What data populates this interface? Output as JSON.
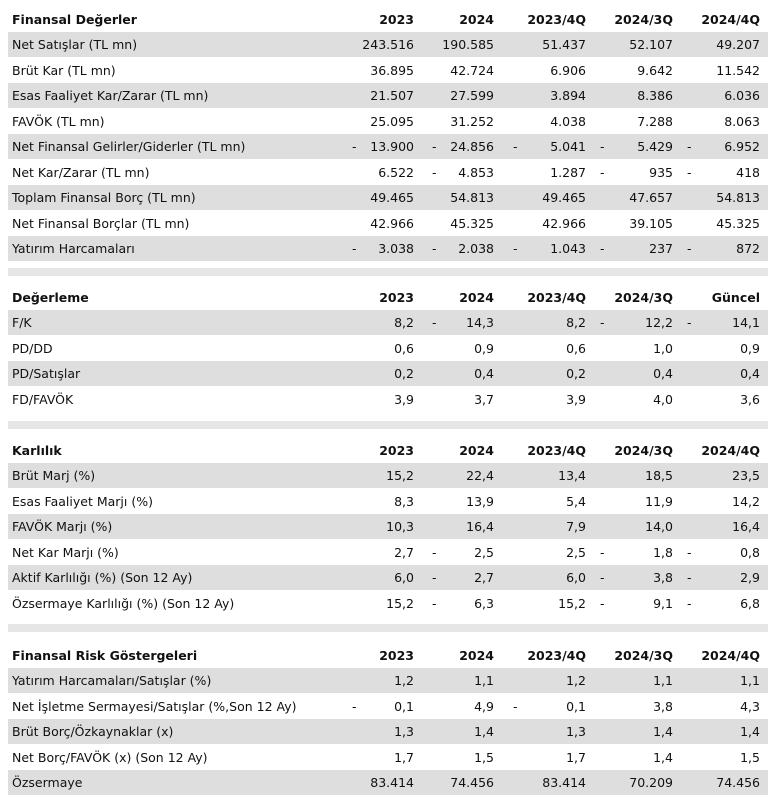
{
  "sections": [
    {
      "header": [
        "Finansal Değerler",
        "2023",
        "2024",
        "2023/4Q",
        "2024/3Q",
        "2024/4Q"
      ],
      "rows": [
        {
          "label": "Net Satışlar (TL mn)",
          "cells": [
            "243.516",
            "190.585",
            "51.437",
            "52.107",
            "49.207"
          ]
        },
        {
          "label": "Brüt Kar (TL mn)",
          "cells": [
            "36.895",
            "42.724",
            "6.906",
            "9.642",
            "11.542"
          ]
        },
        {
          "label": "Esas Faaliyet Kar/Zarar (TL mn)",
          "cells": [
            "21.507",
            "27.599",
            "3.894",
            "8.386",
            "6.036"
          ]
        },
        {
          "label": "FAVÖK (TL mn)",
          "cells": [
            "25.095",
            "31.252",
            "4.038",
            "7.288",
            "8.063"
          ]
        },
        {
          "label": "Net Finansal Gelirler/Giderler (TL mn)",
          "cells": [
            {
              "sign": "-",
              "num": "13.900"
            },
            {
              "sign": "-",
              "num": "24.856"
            },
            {
              "sign": "-",
              "num": "5.041"
            },
            {
              "sign": "-",
              "num": "5.429"
            },
            {
              "sign": "-",
              "num": "6.952"
            }
          ]
        },
        {
          "label": "Net Kar/Zarar (TL mn)",
          "cells": [
            "6.522",
            {
              "sign": "-",
              "num": "4.853"
            },
            "1.287",
            {
              "sign": "-",
              "num": "935"
            },
            {
              "sign": "-",
              "num": "418"
            }
          ]
        },
        {
          "label": "Toplam Finansal Borç (TL mn)",
          "cells": [
            "49.465",
            "54.813",
            "49.465",
            "47.657",
            "54.813"
          ]
        },
        {
          "label": "Net Finansal Borçlar (TL mn)",
          "cells": [
            "42.966",
            "45.325",
            "42.966",
            "39.105",
            "45.325"
          ]
        },
        {
          "label": "Yatırım Harcamaları",
          "cells": [
            {
              "sign": "-",
              "num": "3.038"
            },
            {
              "sign": "-",
              "num": "2.038"
            },
            {
              "sign": "-",
              "num": "1.043"
            },
            {
              "sign": "-",
              "num": "237"
            },
            {
              "sign": "-",
              "num": "872"
            }
          ]
        }
      ]
    },
    {
      "header": [
        "Değerleme",
        "2023",
        "2024",
        "2023/4Q",
        "2024/3Q",
        "Güncel"
      ],
      "rows": [
        {
          "label": "F/K",
          "cells": [
            "8,2",
            {
              "sign": "-",
              "num": "14,3"
            },
            "8,2",
            {
              "sign": "-",
              "num": "12,2"
            },
            {
              "sign": "-",
              "num": "14,1"
            }
          ]
        },
        {
          "label": "PD/DD",
          "cells": [
            "0,6",
            "0,9",
            "0,6",
            "1,0",
            "0,9"
          ]
        },
        {
          "label": "PD/Satışlar",
          "cells": [
            "0,2",
            "0,4",
            "0,2",
            "0,4",
            "0,4"
          ]
        },
        {
          "label": "FD/FAVÖK",
          "cells": [
            "3,9",
            "3,7",
            "3,9",
            "4,0",
            "3,6"
          ]
        }
      ]
    },
    {
      "header": [
        "Karlılık",
        "2023",
        "2024",
        "2023/4Q",
        "2024/3Q",
        "2024/4Q"
      ],
      "rows": [
        {
          "label": "Brüt Marj (%)",
          "cells": [
            "15,2",
            "22,4",
            "13,4",
            "18,5",
            "23,5"
          ]
        },
        {
          "label": "Esas Faaliyet Marjı (%)",
          "cells": [
            "8,3",
            "13,9",
            "5,4",
            "11,9",
            "14,2"
          ]
        },
        {
          "label": "FAVÖK Marjı (%)",
          "cells": [
            "10,3",
            "16,4",
            "7,9",
            "14,0",
            "16,4"
          ]
        },
        {
          "label": "Net Kar Marjı (%)",
          "cells": [
            "2,7",
            {
              "sign": "-",
              "num": "2,5"
            },
            "2,5",
            {
              "sign": "-",
              "num": "1,8"
            },
            {
              "sign": "-",
              "num": "0,8"
            }
          ]
        },
        {
          "label": "Aktif Karlılığı (%) (Son 12 Ay)",
          "cells": [
            "6,0",
            {
              "sign": "-",
              "num": "2,7"
            },
            "6,0",
            {
              "sign": "-",
              "num": "3,8"
            },
            {
              "sign": "-",
              "num": "2,9"
            }
          ]
        },
        {
          "label": "Özsermaye Karlılığı (%) (Son 12 Ay)",
          "cells": [
            "15,2",
            {
              "sign": "-",
              "num": "6,3"
            },
            "15,2",
            {
              "sign": "-",
              "num": "9,1"
            },
            {
              "sign": "-",
              "num": "6,8"
            }
          ]
        }
      ]
    },
    {
      "header": [
        "Finansal Risk Göstergeleri",
        "2023",
        "2024",
        "2023/4Q",
        "2024/3Q",
        "2024/4Q"
      ],
      "rows": [
        {
          "label": "Yatırım Harcamaları/Satışlar (%)",
          "cells": [
            "1,2",
            "1,1",
            "1,2",
            "1,1",
            "1,1"
          ]
        },
        {
          "label": "Net İşletme Sermayesi/Satışlar (%,Son 12 Ay)",
          "cells": [
            {
              "sign": "-",
              "num": "0,1"
            },
            "4,9",
            {
              "sign": "-",
              "num": "0,1"
            },
            "3,8",
            "4,3"
          ]
        },
        {
          "label": "Brüt Borç/Özkaynaklar (x)",
          "cells": [
            "1,3",
            "1,4",
            "1,3",
            "1,4",
            "1,4"
          ]
        },
        {
          "label": "Net Borç/FAVÖK (x) (Son 12 Ay)",
          "cells": [
            "1,7",
            "1,5",
            "1,7",
            "1,4",
            "1,5"
          ]
        },
        {
          "label": "Özsermaye",
          "cells": [
            "83.414",
            "74.456",
            "83.414",
            "70.209",
            "74.456"
          ]
        }
      ]
    }
  ]
}
